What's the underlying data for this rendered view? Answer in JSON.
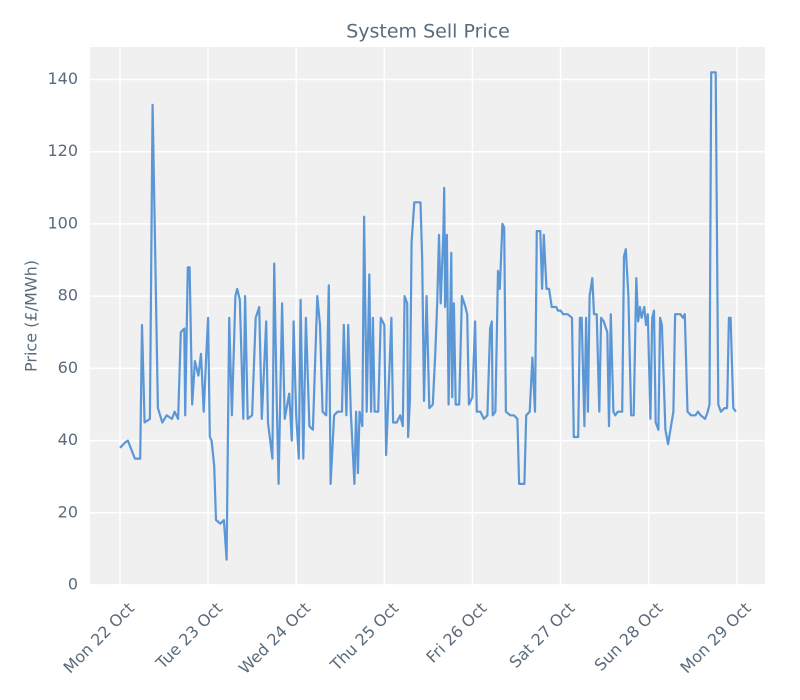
{
  "chart_data": {
    "type": "line",
    "title": "System Sell Price",
    "y_label": "Price (£/MWh)",
    "x": [
      0,
      0.06,
      0.09,
      0.17,
      0.23,
      0.25,
      0.28,
      0.34,
      0.37,
      0.43,
      0.48,
      0.53,
      0.59,
      0.62,
      0.66,
      0.69,
      0.73,
      0.74,
      0.77,
      0.79,
      0.82,
      0.85,
      0.89,
      0.92,
      0.95,
      0.98,
      1.0,
      1.02,
      1.04,
      1.07,
      1.09,
      1.14,
      1.18,
      1.21,
      1.24,
      1.27,
      1.31,
      1.33,
      1.36,
      1.4,
      1.42,
      1.45,
      1.5,
      1.54,
      1.58,
      1.61,
      1.66,
      1.68,
      1.73,
      1.75,
      1.78,
      1.8,
      1.84,
      1.87,
      1.92,
      1.95,
      1.97,
      2.0,
      2.03,
      2.05,
      2.08,
      2.11,
      2.15,
      2.19,
      2.24,
      2.27,
      2.3,
      2.34,
      2.37,
      2.39,
      2.43,
      2.47,
      2.52,
      2.54,
      2.57,
      2.59,
      2.62,
      2.66,
      2.68,
      2.7,
      2.72,
      2.75,
      2.77,
      2.8,
      2.83,
      2.85,
      2.87,
      2.89,
      2.93,
      2.96,
      3.0,
      3.02,
      3.04,
      3.08,
      3.1,
      3.14,
      3.18,
      3.21,
      3.23,
      3.26,
      3.27,
      3.29,
      3.31,
      3.34,
      3.41,
      3.43,
      3.45,
      3.48,
      3.51,
      3.55,
      3.58,
      3.6,
      3.62,
      3.64,
      3.67,
      3.68,
      3.69,
      3.71,
      3.73,
      3.76,
      3.77,
      3.79,
      3.81,
      3.85,
      3.88,
      3.92,
      3.94,
      3.96,
      4.0,
      4.03,
      4.05,
      4.09,
      4.13,
      4.17,
      4.2,
      4.22,
      4.23,
      4.26,
      4.29,
      4.31,
      4.34,
      4.36,
      4.38,
      4.43,
      4.47,
      4.51,
      4.53,
      4.59,
      4.61,
      4.65,
      4.68,
      4.71,
      4.73,
      4.77,
      4.79,
      4.81,
      4.84,
      4.87,
      4.9,
      4.95,
      4.97,
      5.0,
      5.03,
      5.08,
      5.13,
      5.15,
      5.2,
      5.22,
      5.24,
      5.27,
      5.29,
      5.31,
      5.33,
      5.36,
      5.38,
      5.41,
      5.44,
      5.46,
      5.49,
      5.53,
      5.55,
      5.57,
      5.6,
      5.62,
      5.65,
      5.7,
      5.72,
      5.74,
      5.77,
      5.8,
      5.83,
      5.86,
      5.88,
      5.9,
      5.92,
      5.95,
      5.97,
      5.99,
      6.02,
      6.04,
      6.06,
      6.08,
      6.11,
      6.13,
      6.15,
      6.19,
      6.22,
      6.24,
      6.28,
      6.3,
      6.36,
      6.39,
      6.41,
      6.44,
      6.48,
      6.53,
      6.56,
      6.59,
      6.64,
      6.67,
      6.69,
      6.71,
      6.76,
      6.79,
      6.82,
      6.86,
      6.89,
      6.91,
      6.93,
      6.96,
      6.99
    ],
    "series": [
      {
        "name": "System Sell Price",
        "color": "#5b97d6",
        "values": [
          38,
          39.5,
          40,
          35,
          35,
          72,
          45,
          46,
          133,
          49,
          45,
          47,
          46,
          48,
          46,
          70,
          71,
          47,
          88,
          88,
          50,
          62,
          58,
          64,
          48,
          64,
          74,
          41,
          40,
          33,
          18,
          17,
          18,
          7,
          74,
          47,
          80,
          82,
          79,
          46,
          80,
          46,
          47,
          74,
          77,
          46,
          73,
          45,
          35,
          89,
          50,
          28,
          78,
          46,
          53,
          40,
          73,
          47,
          35,
          79,
          35,
          74,
          44,
          43,
          80,
          72,
          48,
          47,
          83,
          28,
          47,
          48,
          48,
          72,
          47,
          72,
          48,
          28,
          48,
          31,
          48,
          44,
          102,
          48,
          86,
          48,
          74,
          48,
          48,
          74,
          72,
          36,
          48,
          74,
          45,
          45,
          47,
          44,
          80,
          78,
          41,
          51,
          95,
          106,
          106,
          90,
          51,
          80,
          49,
          50,
          65,
          78,
          97,
          78,
          98,
          110,
          77,
          97,
          50,
          92,
          52,
          78,
          50,
          50,
          80,
          77,
          75,
          50,
          52,
          73,
          48,
          48,
          46,
          47,
          71,
          73,
          47,
          48,
          87,
          82,
          100,
          99,
          48,
          47,
          47,
          46,
          28,
          28,
          47,
          48,
          63,
          48,
          98,
          98,
          82,
          97,
          82,
          82,
          77,
          77,
          76,
          76,
          75,
          75,
          74,
          41,
          41,
          74,
          74,
          44,
          74,
          48,
          80,
          85,
          75,
          75,
          48,
          74,
          73,
          70,
          44,
          75,
          48,
          47,
          48,
          48,
          91,
          93,
          80,
          47,
          47,
          85,
          73,
          77,
          74,
          77,
          72,
          75,
          46,
          74,
          76,
          45,
          43,
          74,
          72,
          43,
          39,
          42,
          48,
          75,
          75,
          74,
          75,
          48,
          47,
          47,
          48,
          47,
          46,
          48,
          50,
          142,
          142,
          50,
          48,
          49,
          49,
          74,
          74,
          49,
          48
        ]
      }
    ],
    "xlim": [
      -0.34,
      7.32
    ],
    "xticks": [
      {
        "value": 0,
        "label": "Mon 22 Oct"
      },
      {
        "value": 1,
        "label": "Tue 23 Oct"
      },
      {
        "value": 2,
        "label": "Wed 24 Oct"
      },
      {
        "value": 3,
        "label": "Thu 25 Oct"
      },
      {
        "value": 4,
        "label": "Fri 26 Oct"
      },
      {
        "value": 5,
        "label": "Sat 27 Oct"
      },
      {
        "value": 6,
        "label": "Sun 28 Oct"
      },
      {
        "value": 7,
        "label": "Mon 29 Oct"
      }
    ],
    "ylim": [
      0,
      149
    ],
    "yticks": [
      0,
      20,
      40,
      60,
      80,
      100,
      120,
      140
    ],
    "grid": true
  }
}
